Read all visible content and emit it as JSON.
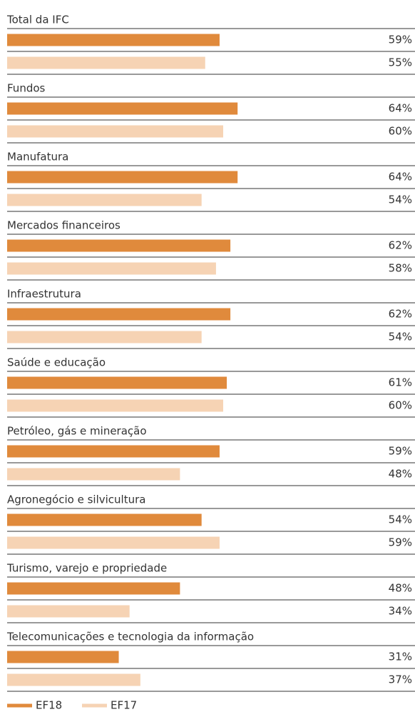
{
  "chart_data": {
    "type": "bar",
    "orientation": "horizontal",
    "categories": [
      "Total da IFC",
      "Fundos",
      "Manufatura",
      "Mercados financeiros",
      "Infraestrutura",
      "Saúde e educação",
      "Petróleo, gás e mineração",
      "Agronegócio e silvicultura",
      "Turismo, varejo e propriedade",
      "Telecomunicações e tecnologia da informação"
    ],
    "series": [
      {
        "name": "EF18",
        "color": "#e08a3c",
        "values": [
          59,
          64,
          64,
          62,
          62,
          61,
          59,
          54,
          48,
          31
        ],
        "value_labels": [
          "59%",
          "64%",
          "64%",
          "62%",
          "62%",
          "61%",
          "59%",
          "54%",
          "48%",
          "31%"
        ]
      },
      {
        "name": "EF17",
        "color": "#f6d3b4",
        "values": [
          55,
          60,
          54,
          58,
          54,
          60,
          48,
          59,
          34,
          37
        ],
        "value_labels": [
          "55%",
          "60%",
          "54%",
          "58%",
          "54%",
          "60%",
          "48%",
          "59%",
          "34%",
          "37%"
        ]
      }
    ],
    "xlim": [
      0,
      100
    ],
    "legend": "bottom"
  }
}
